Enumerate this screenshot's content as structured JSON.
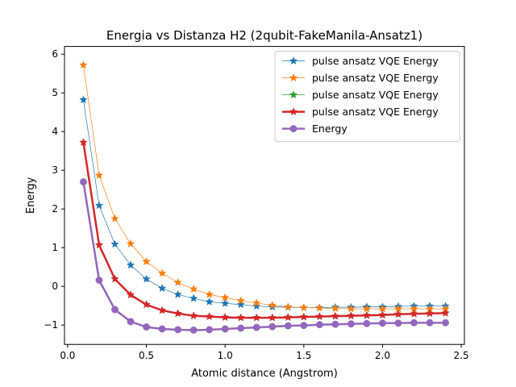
{
  "chart_data": {
    "type": "line",
    "title": "Energia vs Distanza H2 (2qubit-FakeManila-Ansatz1)",
    "xlabel": "Atomic distance (Angstrom)",
    "ylabel": "Energy",
    "xlim": [
      -0.02,
      2.52
    ],
    "ylim": [
      -1.5,
      6.2
    ],
    "xticks": [
      0.0,
      0.5,
      1.0,
      1.5,
      2.0,
      2.5
    ],
    "xtick_labels": [
      "0.0",
      "0.5",
      "1.0",
      "1.5",
      "2.0",
      "2.5"
    ],
    "yticks": [
      -1,
      0,
      1,
      2,
      3,
      4,
      5,
      6
    ],
    "ytick_labels": [
      "−1",
      "0",
      "1",
      "2",
      "3",
      "4",
      "5",
      "6"
    ],
    "grid": false,
    "legend_position": "top-right",
    "x": [
      0.1,
      0.2,
      0.3,
      0.4,
      0.5,
      0.6,
      0.7,
      0.8,
      0.9,
      1.0,
      1.1,
      1.2,
      1.3,
      1.4,
      1.5,
      1.6,
      1.7,
      1.8,
      1.9,
      2.0,
      2.1,
      2.2,
      2.3,
      2.4
    ],
    "series": [
      {
        "name": "pulse ansatz VQE Energy",
        "color": "#1f77b4",
        "marker": "star",
        "width": 0.7,
        "values": [
          4.82,
          2.09,
          1.09,
          0.55,
          0.19,
          -0.05,
          -0.21,
          -0.31,
          -0.4,
          -0.44,
          -0.47,
          -0.51,
          -0.53,
          -0.54,
          -0.55,
          -0.55,
          -0.54,
          -0.54,
          -0.53,
          -0.53,
          -0.52,
          -0.51,
          -0.51,
          -0.51
        ]
      },
      {
        "name": "pulse ansatz VQE Energy",
        "color": "#ff7f0e",
        "marker": "star",
        "width": 0.7,
        "values": [
          5.72,
          2.87,
          1.75,
          1.1,
          0.64,
          0.34,
          0.1,
          -0.07,
          -0.21,
          -0.29,
          -0.37,
          -0.43,
          -0.49,
          -0.53,
          -0.55,
          -0.56,
          -0.57,
          -0.58,
          -0.58,
          -0.58,
          -0.58,
          -0.58,
          -0.58,
          -0.58
        ]
      },
      {
        "name": "pulse ansatz VQE Energy",
        "color": "#2ca02c",
        "marker": "star",
        "width": 0.7,
        "values": [
          3.72,
          1.07,
          0.19,
          -0.22,
          -0.47,
          -0.62,
          -0.7,
          -0.76,
          -0.78,
          -0.8,
          -0.81,
          -0.81,
          -0.81,
          -0.8,
          -0.79,
          -0.78,
          -0.77,
          -0.76,
          -0.75,
          -0.74,
          -0.72,
          -0.71,
          -0.7,
          -0.69
        ]
      },
      {
        "name": "pulse ansatz VQE Energy",
        "color": "#d62728",
        "marker": "star",
        "width": 2.5,
        "values": [
          3.72,
          1.07,
          0.19,
          -0.22,
          -0.47,
          -0.62,
          -0.7,
          -0.76,
          -0.78,
          -0.8,
          -0.81,
          -0.81,
          -0.81,
          -0.8,
          -0.79,
          -0.78,
          -0.77,
          -0.76,
          -0.75,
          -0.74,
          -0.72,
          -0.71,
          -0.7,
          -0.69
        ]
      },
      {
        "name": "Energy",
        "color": "#9467bd",
        "marker": "circle",
        "width": 2.5,
        "values": [
          2.7,
          0.16,
          -0.6,
          -0.91,
          -1.05,
          -1.1,
          -1.12,
          -1.13,
          -1.12,
          -1.1,
          -1.08,
          -1.06,
          -1.04,
          -1.02,
          -1.01,
          -0.99,
          -0.98,
          -0.97,
          -0.96,
          -0.95,
          -0.95,
          -0.94,
          -0.94,
          -0.94
        ]
      }
    ]
  }
}
